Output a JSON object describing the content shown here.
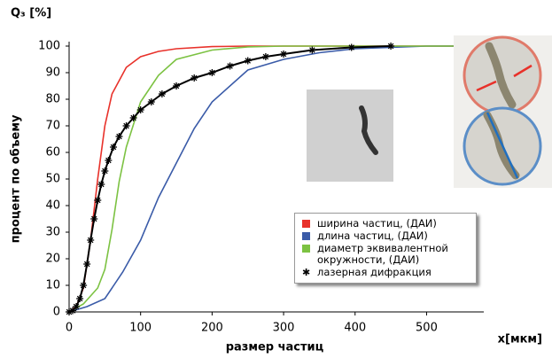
{
  "chart_data": {
    "type": "line",
    "title": "Q₃ [%]",
    "y_label": "процент по объему",
    "x_label": "размер частиц",
    "x_unit_label": "x[мкм]",
    "xlim": [
      0,
      580
    ],
    "xticks": [
      0,
      100,
      200,
      300,
      400,
      500
    ],
    "ylim": [
      0,
      100
    ],
    "yticks": [
      0,
      10,
      20,
      30,
      40,
      50,
      60,
      70,
      80,
      90,
      100
    ],
    "grid": false,
    "legend": "lower right",
    "series": [
      {
        "name": "ширина частиц, (ДАИ)",
        "color": "#e8312a",
        "marker": "none",
        "x": [
          0,
          10,
          20,
          30,
          40,
          50,
          60,
          80,
          100,
          125,
          150,
          200,
          250,
          580
        ],
        "values": [
          0,
          2,
          9,
          27,
          50,
          70,
          82,
          92,
          96,
          98,
          99,
          99.8,
          100,
          100
        ]
      },
      {
        "name": "длина частиц, (ДАИ)",
        "color": "#3a5ba8",
        "marker": "none",
        "x": [
          0,
          25,
          50,
          75,
          100,
          125,
          150,
          175,
          200,
          250,
          300,
          350,
          400,
          450,
          500,
          580
        ],
        "values": [
          0,
          2,
          5,
          15,
          27,
          43,
          56,
          69,
          79,
          91,
          95,
          97.5,
          99,
          99.5,
          100,
          100
        ]
      },
      {
        "name": "диаметр эквивалентной окружности, (ДАИ)",
        "color": "#7cc242",
        "marker": "none",
        "x": [
          0,
          20,
          40,
          50,
          60,
          70,
          80,
          100,
          125,
          150,
          200,
          250,
          300,
          580
        ],
        "values": [
          0,
          3,
          9,
          16,
          31,
          49,
          62,
          79,
          89,
          95,
          98.5,
          99.7,
          100,
          100
        ]
      },
      {
        "name": "лазерная дифракция",
        "color": "#000000",
        "marker": "asterisk",
        "x": [
          0,
          5,
          10,
          15,
          20,
          25,
          30,
          35,
          40,
          45,
          50,
          55,
          62,
          70,
          80,
          90,
          100,
          115,
          130,
          150,
          175,
          200,
          225,
          250,
          275,
          300,
          340,
          395,
          450
        ],
        "values": [
          0,
          0.5,
          2,
          5,
          10,
          18,
          27,
          35,
          42,
          48,
          53,
          57,
          62,
          66,
          70,
          73,
          76,
          79,
          82,
          85,
          88,
          90,
          92.5,
          94.5,
          96,
          97,
          98.5,
          99.5,
          100
        ]
      }
    ]
  }
}
